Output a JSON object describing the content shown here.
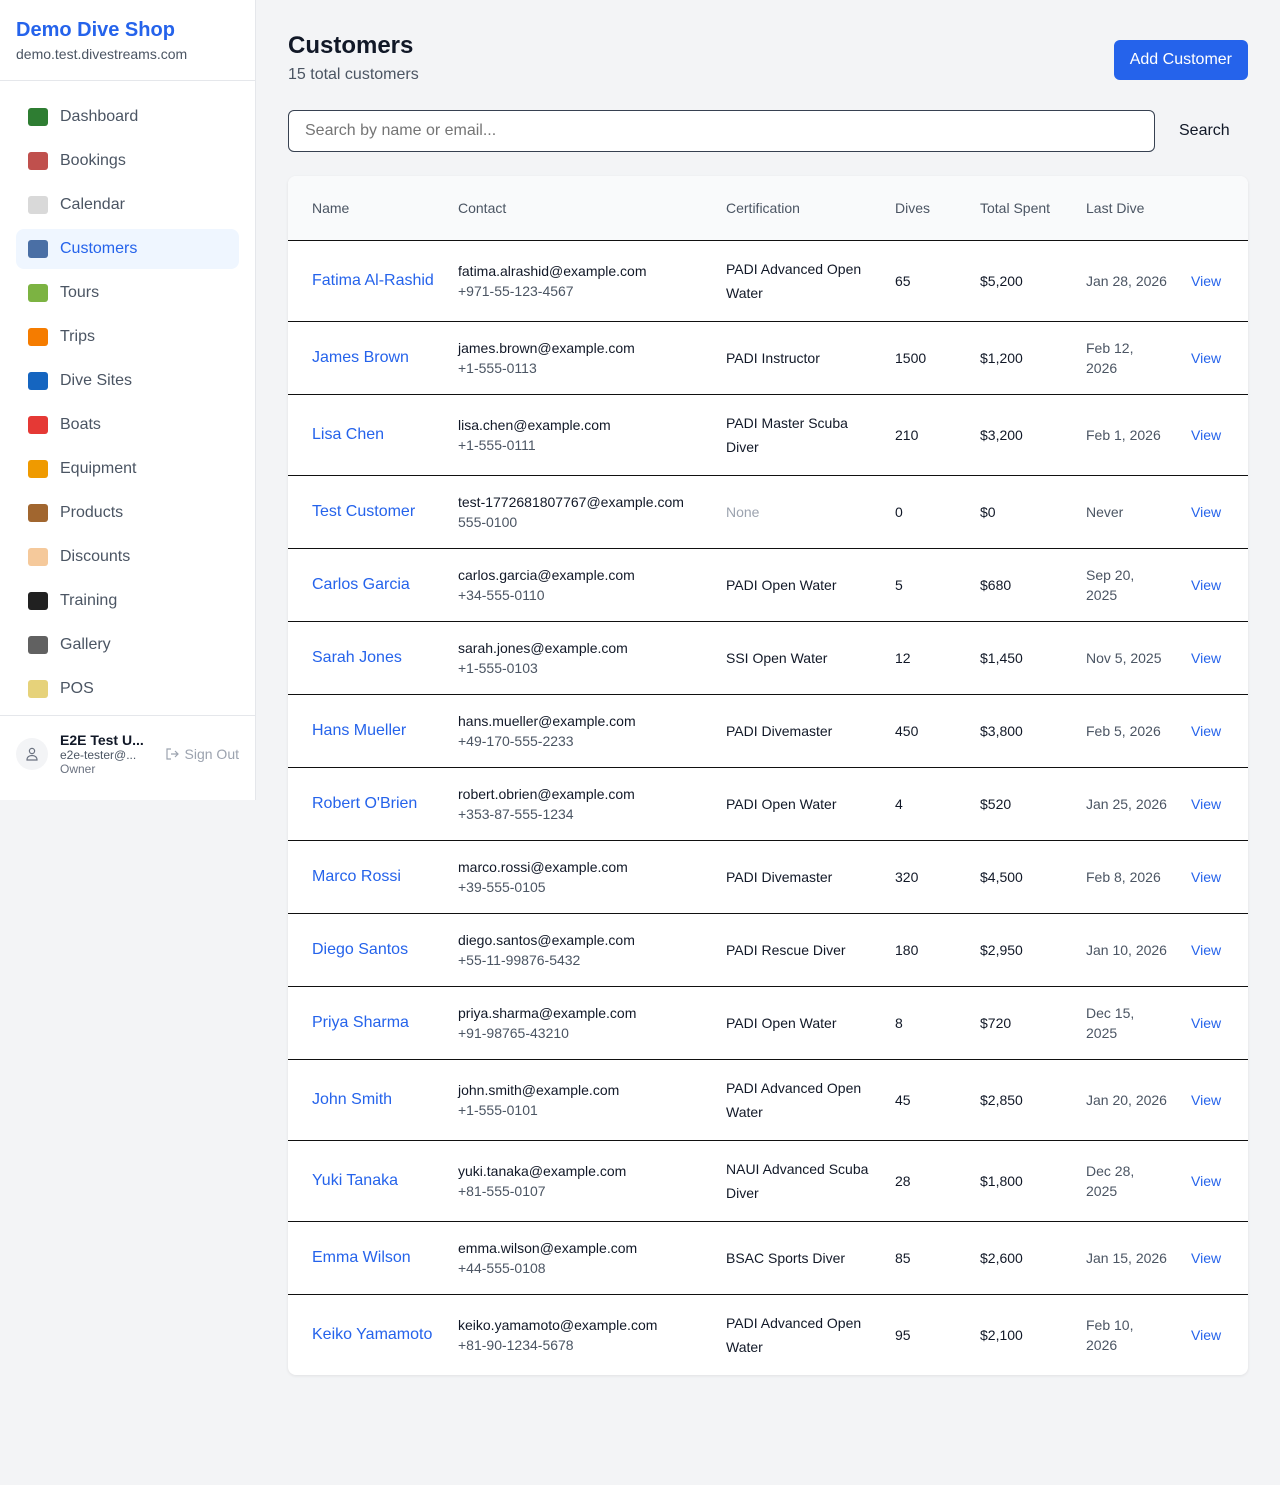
{
  "brand": {
    "name": "Demo Dive Shop",
    "domain": "demo.test.divestreams.com"
  },
  "nav": [
    {
      "label": "Dashboard",
      "icon": "bar-chart-icon",
      "color": "#2e7d32",
      "active": false
    },
    {
      "label": "Bookings",
      "icon": "calendar-17-icon",
      "color": "#c0504d",
      "active": false
    },
    {
      "label": "Calendar",
      "icon": "spiral-calendar-icon",
      "color": "#d9d9d9",
      "active": false
    },
    {
      "label": "Customers",
      "icon": "people-icon",
      "color": "#4a6fa5",
      "active": true
    },
    {
      "label": "Tours",
      "icon": "island-icon",
      "color": "#7cb342",
      "active": false
    },
    {
      "label": "Trips",
      "icon": "speedboat-icon",
      "color": "#f57c00",
      "active": false
    },
    {
      "label": "Dive Sites",
      "icon": "wave-icon",
      "color": "#1565c0",
      "active": false
    },
    {
      "label": "Boats",
      "icon": "sailboat-icon",
      "color": "#e53935",
      "active": false
    },
    {
      "label": "Equipment",
      "icon": "diving-mask-icon",
      "color": "#ef9a00",
      "active": false
    },
    {
      "label": "Products",
      "icon": "package-icon",
      "color": "#a1662f",
      "active": false
    },
    {
      "label": "Discounts",
      "icon": "tag-icon",
      "color": "#f5c99b",
      "active": false
    },
    {
      "label": "Training",
      "icon": "graduation-cap-icon",
      "color": "#212121",
      "active": false
    },
    {
      "label": "Gallery",
      "icon": "camera-flash-icon",
      "color": "#616161",
      "active": false
    },
    {
      "label": "POS",
      "icon": "credit-card-icon",
      "color": "#e6d27a",
      "active": false
    }
  ],
  "user": {
    "name": "E2E Test U...",
    "email": "e2e-tester@...",
    "role": "Owner",
    "sign_out": "Sign Out"
  },
  "header": {
    "title": "Customers",
    "subtitle": "15 total customers",
    "add_label": "Add Customer"
  },
  "search": {
    "placeholder": "Search by name or email...",
    "button": "Search"
  },
  "table": {
    "headers": [
      "Name",
      "Contact",
      "Certification",
      "Dives",
      "Total Spent",
      "Last Dive",
      ""
    ],
    "rows": [
      {
        "name": "Fatima Al-Rashid",
        "email": "fatima.alrashid@example.com",
        "phone": "+971-55-123-4567",
        "cert": "PADI Advanced Open Water",
        "dives": "65",
        "spent": "$5,200",
        "last": "Jan 28, 2026",
        "action": "View"
      },
      {
        "name": "James Brown",
        "email": "james.brown@example.com",
        "phone": "+1-555-0113",
        "cert": "PADI Instructor",
        "dives": "1500",
        "spent": "$1,200",
        "last": "Feb 12, 2026",
        "action": "View"
      },
      {
        "name": "Lisa Chen",
        "email": "lisa.chen@example.com",
        "phone": "+1-555-0111",
        "cert": "PADI Master Scuba Diver",
        "dives": "210",
        "spent": "$3,200",
        "last": "Feb 1, 2026",
        "action": "View"
      },
      {
        "name": "Test Customer",
        "email": "test-1772681807767@example.com",
        "phone": "555-0100",
        "cert": "None",
        "dives": "0",
        "spent": "$0",
        "last": "Never",
        "action": "View"
      },
      {
        "name": "Carlos Garcia",
        "email": "carlos.garcia@example.com",
        "phone": "+34-555-0110",
        "cert": "PADI Open Water",
        "dives": "5",
        "spent": "$680",
        "last": "Sep 20, 2025",
        "action": "View"
      },
      {
        "name": "Sarah Jones",
        "email": "sarah.jones@example.com",
        "phone": "+1-555-0103",
        "cert": "SSI Open Water",
        "dives": "12",
        "spent": "$1,450",
        "last": "Nov 5, 2025",
        "action": "View"
      },
      {
        "name": "Hans Mueller",
        "email": "hans.mueller@example.com",
        "phone": "+49-170-555-2233",
        "cert": "PADI Divemaster",
        "dives": "450",
        "spent": "$3,800",
        "last": "Feb 5, 2026",
        "action": "View"
      },
      {
        "name": "Robert O'Brien",
        "email": "robert.obrien@example.com",
        "phone": "+353-87-555-1234",
        "cert": "PADI Open Water",
        "dives": "4",
        "spent": "$520",
        "last": "Jan 25, 2026",
        "action": "View"
      },
      {
        "name": "Marco Rossi",
        "email": "marco.rossi@example.com",
        "phone": "+39-555-0105",
        "cert": "PADI Divemaster",
        "dives": "320",
        "spent": "$4,500",
        "last": "Feb 8, 2026",
        "action": "View"
      },
      {
        "name": "Diego Santos",
        "email": "diego.santos@example.com",
        "phone": "+55-11-99876-5432",
        "cert": "PADI Rescue Diver",
        "dives": "180",
        "spent": "$2,950",
        "last": "Jan 10, 2026",
        "action": "View"
      },
      {
        "name": "Priya Sharma",
        "email": "priya.sharma@example.com",
        "phone": "+91-98765-43210",
        "cert": "PADI Open Water",
        "dives": "8",
        "spent": "$720",
        "last": "Dec 15, 2025",
        "action": "View"
      },
      {
        "name": "John Smith",
        "email": "john.smith@example.com",
        "phone": "+1-555-0101",
        "cert": "PADI Advanced Open Water",
        "dives": "45",
        "spent": "$2,850",
        "last": "Jan 20, 2026",
        "action": "View"
      },
      {
        "name": "Yuki Tanaka",
        "email": "yuki.tanaka@example.com",
        "phone": "+81-555-0107",
        "cert": "NAUI Advanced Scuba Diver",
        "dives": "28",
        "spent": "$1,800",
        "last": "Dec 28, 2025",
        "action": "View"
      },
      {
        "name": "Emma Wilson",
        "email": "emma.wilson@example.com",
        "phone": "+44-555-0108",
        "cert": "BSAC Sports Diver",
        "dives": "85",
        "spent": "$2,600",
        "last": "Jan 15, 2026",
        "action": "View"
      },
      {
        "name": "Keiko Yamamoto",
        "email": "keiko.yamamoto@example.com",
        "phone": "+81-90-1234-5678",
        "cert": "PADI Advanced Open Water",
        "dives": "95",
        "spent": "$2,100",
        "last": "Feb 10, 2026",
        "action": "View"
      }
    ]
  }
}
